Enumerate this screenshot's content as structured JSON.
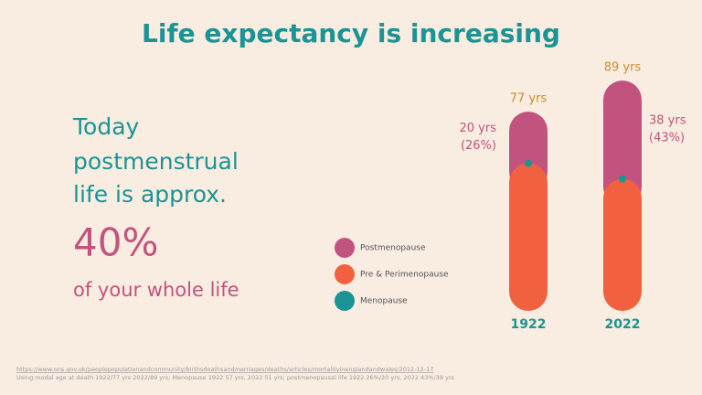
{
  "chart_data": {
    "type": "bar",
    "title": "Life expectancy is increasing",
    "categories": [
      "1922",
      "2022"
    ],
    "series": [
      {
        "name": "Postmenopause",
        "color": "#c2537f",
        "values": [
          20,
          38
        ],
        "value_labels": [
          "20 yrs",
          "38 yrs"
        ]
      },
      {
        "name": "Pre & Perimenopause",
        "color": "#f2613f",
        "values": [
          57,
          51
        ]
      },
      {
        "name": "Menopause",
        "color": "#1a9494",
        "values": [
          57,
          51
        ]
      }
    ],
    "shares": {
      "values": [
        26,
        43
      ],
      "value_labels": [
        "(26%)",
        "(43%)"
      ]
    },
    "totals": {
      "values": [
        77,
        89
      ],
      "value_labels": [
        "77 yrs",
        "89 yrs"
      ]
    }
  },
  "statement": {
    "lines": [
      "Today",
      "postmenstrual",
      "life is approx."
    ],
    "headline": "40%",
    "tail": "of your  whole life"
  },
  "source": [
    "https://www.ons.gov.uk/peoplepopulationandcommunity/birthsdeathsandmarriages/deaths/articles/mortalityinenglandandwales/2012-12-17",
    "Using modal age at death 1922/77 yrs 2022/89 yrs; Menopause 1922 57 yrs, 2022 51 yrs; postmenopausal life 1922 26%/20 yrs, 2022 43%/38 yrs"
  ]
}
